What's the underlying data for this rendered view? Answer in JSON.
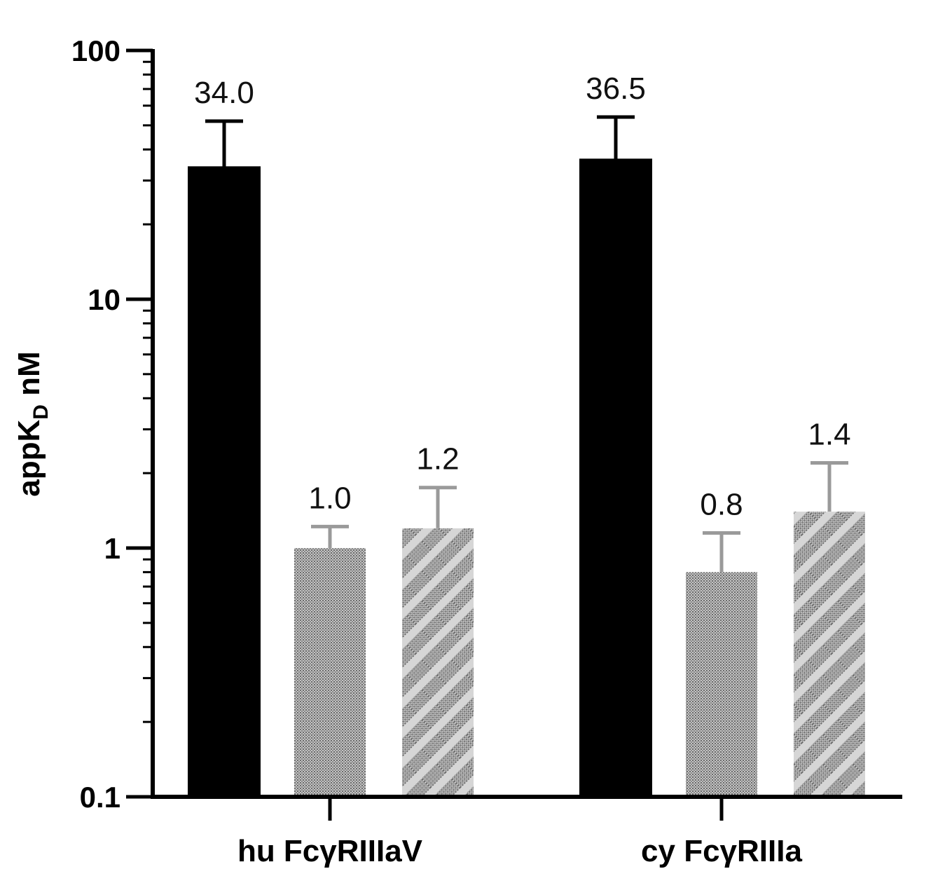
{
  "chart_data": {
    "type": "bar",
    "scale": "log",
    "ylim": [
      0.1,
      100
    ],
    "yticks": [
      {
        "value": 100,
        "label": "100"
      },
      {
        "value": 10,
        "label": "10"
      },
      {
        "value": 1,
        "label": "1"
      },
      {
        "value": 0.1,
        "label": "0.1"
      }
    ],
    "ylabel": {
      "main": "appK",
      "sub": "D",
      "unit": " nM"
    },
    "categories": [
      "hu FcγRIIIaV",
      "cy FcγRIIIa"
    ],
    "series": [
      {
        "fill": "solid-black",
        "color": "#000000",
        "values": [
          34.0,
          36.5
        ],
        "errors_upper": [
          52,
          54
        ],
        "labels": [
          "34.0",
          "36.5"
        ]
      },
      {
        "fill": "gray-stipple",
        "color": "#9a9a9a",
        "values": [
          1.0,
          0.8
        ],
        "errors_upper": [
          1.22,
          1.15
        ],
        "labels": [
          "1.0",
          "0.8"
        ]
      },
      {
        "fill": "gray-hatched",
        "color": "#8a8a8a",
        "values": [
          1.2,
          1.4
        ],
        "errors_upper": [
          1.75,
          2.2
        ],
        "labels": [
          "1.2",
          "1.4"
        ]
      }
    ],
    "grid": false,
    "legend": "none"
  }
}
